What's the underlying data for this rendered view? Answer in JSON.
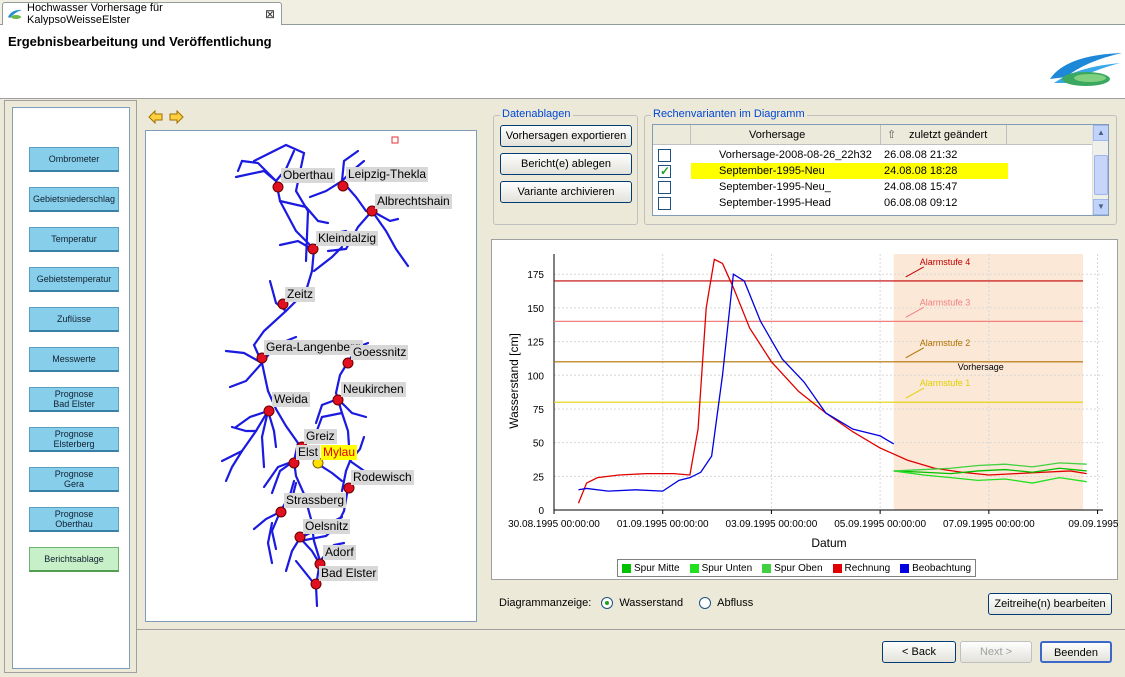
{
  "tab": {
    "title": "Hochwasser Vorhersage für KalypsoWeisseElster",
    "close": "⊠"
  },
  "header": {
    "title": "Ergebnisbearbeitung und Veröffentlichung"
  },
  "sidebar": {
    "items": [
      {
        "label": "Ombrometer"
      },
      {
        "label": "Gebietsniederschlag"
      },
      {
        "label": "Temperatur"
      },
      {
        "label": "Gebietstemperatur"
      },
      {
        "label": "Zuflüsse"
      },
      {
        "label": "Messwerte"
      },
      {
        "label": "Prognose\nBad Elster"
      },
      {
        "label": "Prognose\nElsterberg"
      },
      {
        "label": "Prognose\nGera"
      },
      {
        "label": "Prognose\nOberthau"
      },
      {
        "label": "Berichtsablage"
      }
    ]
  },
  "map": {
    "stations": [
      {
        "name": "Oberthau"
      },
      {
        "name": "Leipzig-Thekla"
      },
      {
        "name": "Albrechtshain"
      },
      {
        "name": "Kleindalzig"
      },
      {
        "name": "Zeitz"
      },
      {
        "name": "Gera-Langenberg"
      },
      {
        "name": "Goessnitz"
      },
      {
        "name": "Neukirchen"
      },
      {
        "name": "Weida"
      },
      {
        "name": "Greiz"
      },
      {
        "name": "Elst"
      },
      {
        "name": "Mylau"
      },
      {
        "name": "Rodewisch"
      },
      {
        "name": "Strassberg"
      },
      {
        "name": "Oelsnitz"
      },
      {
        "name": "Adorf"
      },
      {
        "name": "Bad Elster"
      }
    ]
  },
  "datenablagen": {
    "label": "Datenablagen",
    "export_btn": "Vorhersagen exportieren",
    "report_btn": "Bericht(e) ablegen",
    "archive_btn": "Variante archivieren"
  },
  "rechenvarianten": {
    "label": "Rechenvarianten im Diagramm",
    "col_name": "Vorhersage",
    "col_date": "zuletzt geändert",
    "sort_icon": "⇧",
    "rows": [
      {
        "name": "Vorhersage-2008-08-26_22h32",
        "date": "26.08.08 21:32",
        "checked": false
      },
      {
        "name": "September-1995-Neu",
        "date": "24.08.08 18:28",
        "checked": true
      },
      {
        "name": "September-1995-Neu_",
        "date": "24.08.08 15:47",
        "checked": false
      },
      {
        "name": "September-1995-Head",
        "date": "06.08.08 09:12",
        "checked": false
      }
    ]
  },
  "chart_data": {
    "type": "line",
    "xlabel": "Datum",
    "ylabel": "Wasserstand [cm]",
    "ylim": [
      0,
      190
    ],
    "yticks": [
      0,
      25,
      50,
      75,
      100,
      125,
      150,
      175
    ],
    "xticks": [
      "30.08.1995 00:00:00",
      "01.09.1995 00:00:00",
      "03.09.1995 00:00:00",
      "05.09.1995 00:00:00",
      "07.09.1995 00:00:00",
      "09.09.1995 0"
    ],
    "xlim_days": [
      0,
      10.1
    ],
    "forecast_start_day": 6.25,
    "forecast_label": "Vorhersage",
    "alarms": [
      {
        "name": "Alarmstufe 4",
        "value": 170,
        "color": "#c00000"
      },
      {
        "name": "Alarmstufe 3",
        "value": 140,
        "color": "#f08080"
      },
      {
        "name": "Alarmstufe 2",
        "value": 110,
        "color": "#b07000"
      },
      {
        "name": "Alarmstufe 1",
        "value": 80,
        "color": "#e0d000"
      }
    ],
    "series": [
      {
        "name": "Rechnung",
        "color": "#e00000",
        "x": [
          0.45,
          0.6,
          0.8,
          1.2,
          1.7,
          2.2,
          2.5,
          2.65,
          2.8,
          2.95,
          3.1,
          3.3,
          3.6,
          4.0,
          4.5,
          5.0,
          5.5,
          6.0,
          6.5,
          7.0,
          7.5,
          8.0,
          8.5,
          9.0,
          9.5,
          9.8
        ],
        "y": [
          5,
          20,
          24,
          26,
          27,
          27,
          26,
          60,
          150,
          186,
          183,
          165,
          135,
          110,
          88,
          72,
          58,
          46,
          37,
          31,
          28,
          26,
          27,
          28,
          29,
          27
        ]
      },
      {
        "name": "Beobachtung",
        "color": "#0000e0",
        "x": [
          0.45,
          0.6,
          1.0,
          1.5,
          2.0,
          2.3,
          2.5,
          2.7,
          2.9,
          3.1,
          3.3,
          3.5,
          3.8,
          4.2,
          4.6,
          5.0,
          5.5,
          6.0,
          6.25
        ],
        "y": [
          15,
          16,
          14,
          15,
          14,
          22,
          24,
          28,
          40,
          100,
          175,
          170,
          140,
          112,
          95,
          72,
          60,
          55,
          49
        ]
      },
      {
        "name": "Spur Mitte",
        "color": "#00c000",
        "x": [
          6.25,
          6.8,
          7.3,
          7.8,
          8.3,
          8.8,
          9.3,
          9.8
        ],
        "y": [
          29,
          28,
          27,
          29,
          30,
          28,
          31,
          29
        ]
      },
      {
        "name": "Spur Unten",
        "color": "#20e020",
        "x": [
          6.25,
          6.8,
          7.3,
          7.8,
          8.3,
          8.8,
          9.3,
          9.8
        ],
        "y": [
          29,
          26,
          24,
          22,
          23,
          20,
          24,
          21
        ]
      },
      {
        "name": "Spur Oben",
        "color": "#40d040",
        "x": [
          6.25,
          6.8,
          7.3,
          7.8,
          8.3,
          8.8,
          9.3,
          9.8
        ],
        "y": [
          29,
          30,
          31,
          33,
          34,
          32,
          35,
          34
        ]
      }
    ],
    "legend_order": [
      "Spur Mitte",
      "Spur Unten",
      "Spur Oben",
      "Rechnung",
      "Beobachtung"
    ],
    "legend_colors": [
      "#00c000",
      "#20e020",
      "#40d040",
      "#e00000",
      "#0000e0"
    ]
  },
  "diagramm": {
    "label": "Diagrammanzeige:",
    "option_wasserstand": "Wasserstand",
    "option_abfluss": "Abfluss",
    "selected": "Wasserstand",
    "edit_btn": "Zeitreihe(n) bearbeiten"
  },
  "footer": {
    "back_btn": "< Back",
    "next_btn": "Next >",
    "finish_btn": "Beenden"
  }
}
